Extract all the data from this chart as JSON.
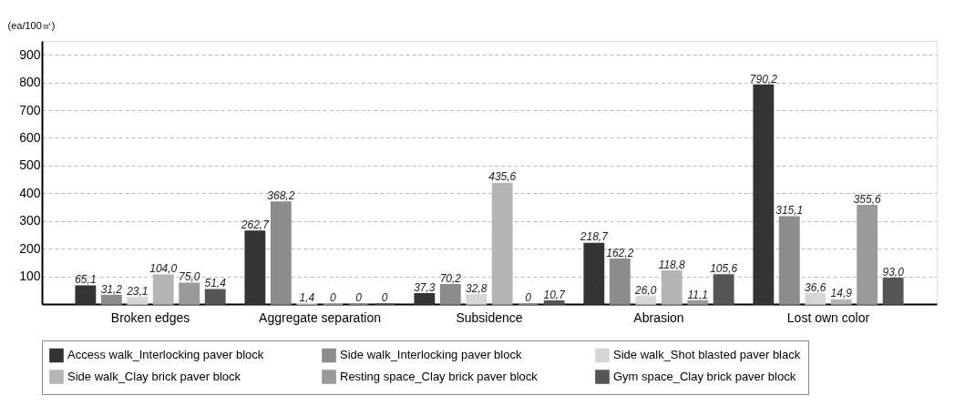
{
  "chart_data": {
    "type": "bar",
    "ylabel": "(ea/100㎡)",
    "categories": [
      "Broken edges",
      "Aggregate separation",
      "Subsidence",
      "Abrasion",
      "Lost own color"
    ],
    "series": [
      {
        "name": "Access walk_Interlocking paver block",
        "color": "#333333",
        "values": [
          65.1,
          262.7,
          37.3,
          218.7,
          790.2
        ],
        "value_labels": [
          "65,1",
          "262,7",
          "37,3",
          "218,7",
          "790,2"
        ]
      },
      {
        "name": "Side walk_Interlocking paver block",
        "color": "#8c8c8c",
        "values": [
          31.2,
          368.2,
          70.2,
          162.2,
          315.1
        ],
        "value_labels": [
          "31,2",
          "368,2",
          "70,2",
          "162,2",
          "315,1"
        ]
      },
      {
        "name": "Side walk_Shot blasted paver black",
        "color": "#d6d6d6",
        "values": [
          23.1,
          1.4,
          32.8,
          26.0,
          36.6
        ],
        "value_labels": [
          "23,1",
          "1,4",
          "32,8",
          "26,0",
          "36,6"
        ]
      },
      {
        "name": "Side walk_Clay brick paver block",
        "color": "#b4b4b4",
        "values": [
          104.0,
          0,
          435.6,
          118.8,
          14.9
        ],
        "value_labels": [
          "104,0",
          "0",
          "435,6",
          "118,8",
          "14,9"
        ]
      },
      {
        "name": "Resting space_Clay brick paver block",
        "color": "#9a9a9a",
        "values": [
          75.0,
          0,
          0,
          11.1,
          355.6
        ],
        "value_labels": [
          "75,0",
          "0",
          "0",
          "11,1",
          "355,6"
        ]
      },
      {
        "name": "Gym space_Clay brick paver block",
        "color": "#555555",
        "values": [
          51.4,
          0,
          10.7,
          105.6,
          93.0
        ],
        "value_labels": [
          "51,4",
          "0",
          "10,7",
          "105,6",
          "93,0"
        ]
      }
    ],
    "ylim": [
      0,
      950
    ],
    "yticks": [
      100,
      200,
      300,
      400,
      500,
      600,
      700,
      800,
      900
    ],
    "grid": "y",
    "legend": "bottom"
  }
}
